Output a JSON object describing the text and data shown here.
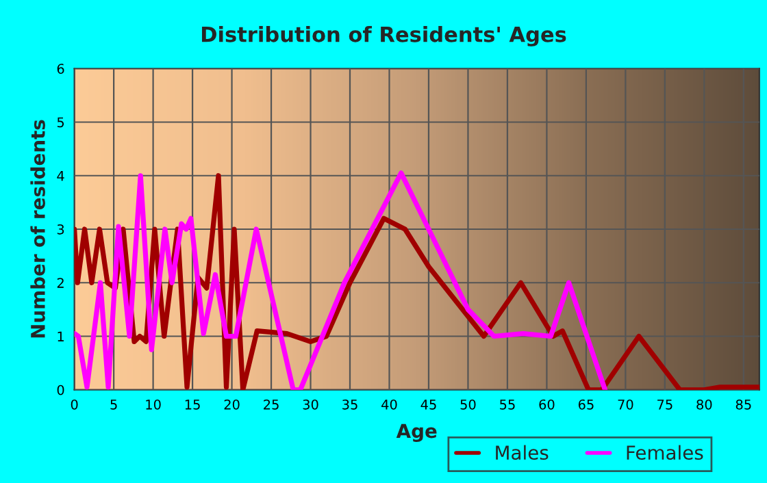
{
  "chart_data": {
    "type": "line",
    "title": "Distribution of Residents' Ages",
    "xlabel": "Age",
    "ylabel": "Number of residents",
    "xlim": [
      0,
      87
    ],
    "xticks": [
      0,
      5,
      10,
      15,
      20,
      25,
      30,
      35,
      40,
      45,
      50,
      55,
      60,
      65,
      70,
      75,
      80,
      85
    ],
    "ylim": [
      0,
      6
    ],
    "yticks": [
      0,
      1,
      2,
      3,
      4,
      5,
      6
    ],
    "grid": true,
    "legend": "bottom right",
    "line_style": "solid",
    "marker": "none",
    "series": [
      {
        "name": "Males",
        "color": "#a00000",
        "x": [
          0,
          0.4,
          1.3,
          2.2,
          3.2,
          4.2,
          5.2,
          6.2,
          7.6,
          8.3,
          9.1,
          10.2,
          11.4,
          13.1,
          14.3,
          15.7,
          16.8,
          18.3,
          19.3,
          20.3,
          21.4,
          23.2,
          27,
          30,
          32,
          35,
          39.3,
          42,
          45,
          52,
          56.7,
          60.8,
          62,
          65.3,
          67,
          71.7,
          76.9,
          80,
          82,
          87
        ],
        "values": [
          3,
          2,
          3,
          2,
          3,
          2,
          1.9,
          3,
          0.9,
          1,
          0.9,
          3,
          1,
          3,
          0.05,
          2.1,
          1.9,
          4,
          0.05,
          3,
          0,
          1.1,
          1.05,
          0.9,
          1,
          2,
          3.2,
          3,
          2.3,
          1,
          2,
          1,
          1.1,
          0,
          0,
          1,
          0,
          0,
          0.05,
          0.05
        ]
      },
      {
        "name": "Females",
        "color": "#ff00ff",
        "x": [
          0,
          0.5,
          1.6,
          3.3,
          4.3,
          5.6,
          7,
          8.4,
          9.8,
          11.5,
          12.4,
          13.6,
          14.2,
          14.8,
          16.4,
          17.9,
          19.3,
          20.5,
          23.1,
          27.8,
          28.7,
          34.3,
          41.5,
          45,
          50,
          53.3,
          57,
          60.5,
          62.8,
          67.4
        ],
        "values": [
          1.05,
          1,
          0.05,
          2,
          0.05,
          3.05,
          1,
          4,
          0.75,
          3,
          2,
          3.1,
          3,
          3.2,
          1.05,
          2.15,
          1,
          1,
          3,
          0,
          0,
          2,
          4.05,
          3,
          1.5,
          1,
          1.05,
          1,
          2,
          0
        ]
      }
    ]
  }
}
